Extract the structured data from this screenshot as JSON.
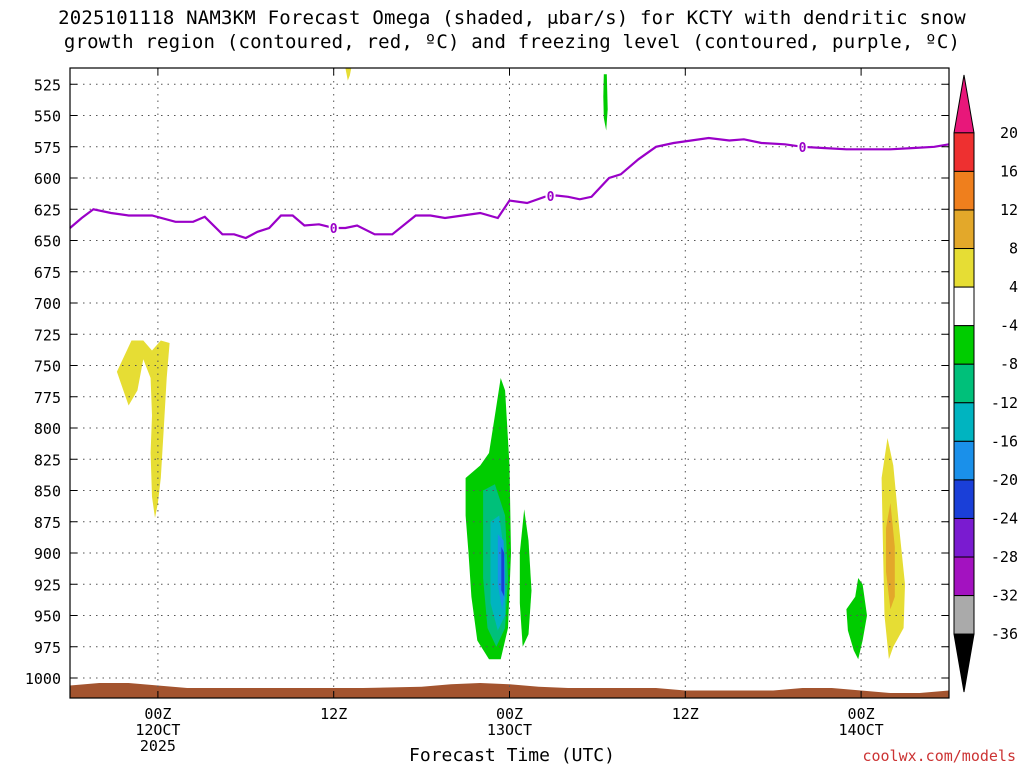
{
  "title": {
    "line1": "2025101118 NAM3KM Forecast Omega (shaded, μbar/s) for KCTY with dendritic snow",
    "line2": "growth region (contoured, red, ºC) and freezing level (contoured, purple, ºC)"
  },
  "x_axis_title": "Forecast Time (UTC)",
  "watermark": "coolwx.com/models",
  "chart_data": {
    "type": "heatmap",
    "title": "2025101118 NAM3KM Forecast Omega (shaded, μbar/s) for KCTY with dendritic snow growth region (contoured, red, ºC) and freezing level (contoured, purple, ºC)",
    "xlabel": "Forecast Time (UTC)",
    "ylabel": "",
    "y_axis": {
      "unit": "hPa",
      "inverted": true,
      "range": [
        1016,
        512
      ],
      "ticks": [
        525,
        550,
        575,
        600,
        625,
        650,
        675,
        700,
        725,
        750,
        775,
        800,
        825,
        850,
        875,
        900,
        925,
        950,
        975,
        1000
      ]
    },
    "x_axis": {
      "unit": "hours since 2025-10-11 18Z",
      "range": [
        0,
        30
      ],
      "ticks": [
        {
          "hour": 3,
          "label": [
            "00Z",
            "12OCT",
            "2025"
          ]
        },
        {
          "hour": 9,
          "label": [
            "12Z"
          ]
        },
        {
          "hour": 15,
          "label": [
            "00Z",
            "13OCT"
          ]
        },
        {
          "hour": 21,
          "label": [
            "12Z"
          ]
        },
        {
          "hour": 27,
          "label": [
            "00Z",
            "14OCT"
          ]
        }
      ]
    },
    "grid": true,
    "colorbar": {
      "levels": [
        20,
        16,
        12,
        8,
        4,
        -4,
        -8,
        -12,
        -16,
        -20,
        -24,
        -28,
        -32,
        -36
      ],
      "colors": [
        "#e8177a",
        "#ee3030",
        "#ef7f1d",
        "#e3a82a",
        "#e6dd34",
        "#ffffff",
        "#00cc00",
        "#00c07a",
        "#00b4c0",
        "#1a90ea",
        "#1a3fd8",
        "#7a1bd0",
        "#a312c0",
        "#aaaaaa",
        "#000000"
      ]
    },
    "freezing_level": {
      "label": "0",
      "color": "#9a00c8",
      "hours": [
        0,
        0.4,
        0.8,
        1.4,
        2,
        2.8,
        3.6,
        4.2,
        4.6,
        5.2,
        5.6,
        6,
        6.4,
        6.8,
        7.2,
        7.6,
        8,
        8.5,
        9,
        9.4,
        9.8,
        10.4,
        11,
        11.8,
        12.3,
        12.8,
        13.4,
        14,
        14.6,
        15,
        15.6,
        16.2,
        16.6,
        17,
        17.4,
        17.8,
        18.4,
        18.8,
        19.4,
        20,
        20.6,
        21.2,
        21.8,
        22.5,
        23,
        23.6,
        24.4,
        25,
        25.7,
        26.5,
        27.3,
        28,
        28.8,
        29.5,
        30
      ],
      "pressure": [
        640,
        632,
        625,
        628,
        630,
        630,
        635,
        635,
        631,
        645,
        645,
        648,
        643,
        640,
        630,
        630,
        638,
        637,
        640,
        640,
        638,
        645,
        645,
        630,
        630,
        632,
        630,
        628,
        632,
        618,
        620,
        615,
        614,
        615,
        617,
        615,
        600,
        597,
        585,
        575,
        572,
        570,
        568,
        570,
        569,
        572,
        573,
        575,
        576,
        577,
        577,
        577,
        576,
        575,
        573
      ]
    },
    "omega_regions": [
      {
        "level": 4,
        "color": "#e6dd34",
        "points": [
          [
            1.6,
            755
          ],
          [
            2.1,
            730
          ],
          [
            2.5,
            730
          ],
          [
            2.8,
            738
          ],
          [
            3.1,
            730
          ],
          [
            3.4,
            732
          ],
          [
            3.3,
            760
          ],
          [
            3.2,
            800
          ],
          [
            3.1,
            840
          ],
          [
            3.0,
            860
          ],
          [
            2.9,
            872
          ],
          [
            2.8,
            855
          ],
          [
            2.75,
            820
          ],
          [
            2.8,
            790
          ],
          [
            2.75,
            760
          ],
          [
            2.5,
            745
          ],
          [
            2.3,
            770
          ],
          [
            2.0,
            782
          ]
        ]
      },
      {
        "level": -4,
        "color": "#00cc00",
        "points": [
          [
            13.5,
            840
          ],
          [
            14.0,
            830
          ],
          [
            14.3,
            820
          ],
          [
            14.5,
            790
          ],
          [
            14.7,
            760
          ],
          [
            14.85,
            770
          ],
          [
            15.0,
            830
          ],
          [
            15.05,
            900
          ],
          [
            14.95,
            960
          ],
          [
            14.7,
            985
          ],
          [
            14.3,
            985
          ],
          [
            13.9,
            970
          ],
          [
            13.7,
            935
          ],
          [
            13.6,
            900
          ],
          [
            13.5,
            870
          ]
        ]
      },
      {
        "level": -8,
        "color": "#00c07a",
        "points": [
          [
            14.1,
            850
          ],
          [
            14.5,
            845
          ],
          [
            14.85,
            870
          ],
          [
            14.95,
            920
          ],
          [
            14.85,
            960
          ],
          [
            14.55,
            975
          ],
          [
            14.25,
            960
          ],
          [
            14.1,
            920
          ]
        ]
      },
      {
        "level": -12,
        "color": "#00b4c0",
        "points": [
          [
            14.35,
            875
          ],
          [
            14.65,
            870
          ],
          [
            14.85,
            905
          ],
          [
            14.85,
            950
          ],
          [
            14.6,
            962
          ],
          [
            14.35,
            940
          ]
        ]
      },
      {
        "level": -16,
        "color": "#1a90ea",
        "points": [
          [
            14.6,
            885
          ],
          [
            14.8,
            890
          ],
          [
            14.85,
            930
          ],
          [
            14.75,
            945
          ],
          [
            14.6,
            925
          ]
        ]
      },
      {
        "level": -20,
        "color": "#1a3fd8",
        "points": [
          [
            14.72,
            895
          ],
          [
            14.82,
            900
          ],
          [
            14.82,
            935
          ],
          [
            14.72,
            930
          ]
        ]
      },
      {
        "level": -4,
        "color": "#00cc00",
        "points": [
          [
            15.35,
            900
          ],
          [
            15.5,
            865
          ],
          [
            15.65,
            890
          ],
          [
            15.75,
            930
          ],
          [
            15.65,
            965
          ],
          [
            15.45,
            975
          ],
          [
            15.35,
            940
          ]
        ]
      },
      {
        "level": -4,
        "color": "#00cc00",
        "points": [
          [
            18.22,
            517
          ],
          [
            18.32,
            517
          ],
          [
            18.35,
            545
          ],
          [
            18.3,
            562
          ],
          [
            18.22,
            552
          ],
          [
            18.2,
            535
          ]
        ]
      },
      {
        "level": 4,
        "color": "#e6dd34",
        "points": [
          [
            9.4,
            512
          ],
          [
            9.6,
            512
          ],
          [
            9.55,
            518
          ],
          [
            9.48,
            522
          ]
        ]
      },
      {
        "level": -4,
        "color": "#00cc00",
        "points": [
          [
            26.5,
            945
          ],
          [
            26.8,
            935
          ],
          [
            26.9,
            920
          ],
          [
            27.05,
            925
          ],
          [
            27.2,
            950
          ],
          [
            27.05,
            970
          ],
          [
            26.9,
            985
          ],
          [
            26.75,
            978
          ],
          [
            26.55,
            962
          ]
        ]
      },
      {
        "level": 4,
        "color": "#e6dd34",
        "points": [
          [
            27.7,
            840
          ],
          [
            27.9,
            808
          ],
          [
            28.1,
            830
          ],
          [
            28.3,
            880
          ],
          [
            28.5,
            925
          ],
          [
            28.45,
            960
          ],
          [
            28.1,
            975
          ],
          [
            27.95,
            985
          ],
          [
            27.8,
            950
          ],
          [
            27.75,
            900
          ]
        ]
      },
      {
        "level": 8,
        "color": "#e3a82a",
        "points": [
          [
            27.85,
            880
          ],
          [
            28.0,
            860
          ],
          [
            28.15,
            895
          ],
          [
            28.15,
            935
          ],
          [
            28.0,
            945
          ],
          [
            27.85,
            915
          ]
        ]
      }
    ],
    "ground": {
      "color": "#a3542f",
      "hours": [
        0,
        1,
        2,
        3,
        4,
        6,
        8,
        10,
        12,
        13,
        14,
        15,
        16,
        17,
        18,
        19,
        20,
        21,
        22,
        24,
        25,
        26,
        27,
        28,
        29,
        30
      ],
      "pressure": [
        1006,
        1004,
        1004,
        1006,
        1008,
        1008,
        1008,
        1008,
        1007,
        1005,
        1004,
        1005,
        1007,
        1008,
        1008,
        1008,
        1008,
        1010,
        1010,
        1010,
        1008,
        1008,
        1010,
        1012,
        1012,
        1010
      ]
    }
  }
}
